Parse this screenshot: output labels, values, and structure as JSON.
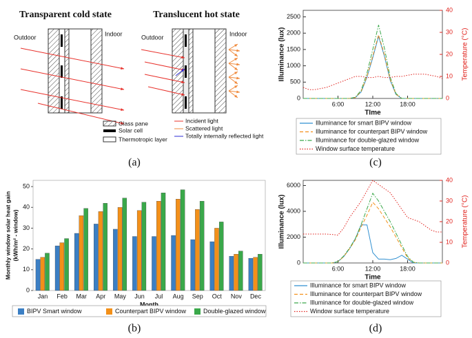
{
  "panels": [
    "(a)",
    "(b)",
    "(c)",
    "(d)"
  ],
  "diagram": {
    "cold_title": "Transparent cold state",
    "hot_title": "Translucent hot state",
    "outdoor": "Outdoor",
    "indoor": "Indoor",
    "legend": [
      "Glass pane",
      "Solar cell",
      "Thermotropic layer"
    ],
    "light_legend": [
      {
        "name": "Incident light",
        "color": "#e8302a"
      },
      {
        "name": "Scattered light",
        "color": "#f08a3c"
      },
      {
        "name": "Totally internally reflected light",
        "color": "#2b2bd6"
      }
    ]
  },
  "chart_data": [
    {
      "type": "bar",
      "x_label": "Month",
      "y_label": [
        "Monthly window solar heat gain",
        "(kWh/m² - window)"
      ],
      "categories": [
        "Jan",
        "Feb",
        "Mar",
        "Apr",
        "May",
        "Jun",
        "Jul",
        "Aug",
        "Sep",
        "Oct",
        "Nov",
        "Dec"
      ],
      "series": [
        {
          "name": "BIPV Smart window",
          "color": "#3b7fc4",
          "values": [
            15,
            21.5,
            27.5,
            32,
            29.5,
            26,
            26,
            26.5,
            24.5,
            23.5,
            16.5,
            15.5
          ]
        },
        {
          "name": "Counterpart BIPV window",
          "color": "#f39019",
          "values": [
            16,
            23,
            36,
            38,
            40,
            38.5,
            43,
            44,
            39,
            30,
            17.5,
            16
          ]
        },
        {
          "name": "Double-glazed window",
          "color": "#3aa84a",
          "values": [
            18,
            25,
            39.5,
            42,
            44.5,
            42.5,
            47,
            48.5,
            43,
            33,
            19,
            17.5
          ]
        }
      ],
      "ylim": [
        0,
        53
      ],
      "yticks": [
        0,
        10,
        20,
        30,
        40,
        50
      ]
    },
    {
      "type": "line",
      "x_label": "TIme",
      "y_label": "Illuminance (lux)",
      "y2_label": "Temperature (°C)",
      "y2_color": "#e0201b",
      "x": [
        0,
        1,
        2,
        3,
        4,
        5,
        6,
        7,
        8,
        9,
        10,
        11,
        12,
        13,
        14,
        15,
        16,
        17,
        18,
        19,
        20,
        21,
        22,
        23,
        24
      ],
      "series": [
        {
          "name": "Illuminance for smart BIPV window",
          "color": "#2f8fd0",
          "style": "solid",
          "values": [
            0,
            0,
            0,
            0,
            0,
            0,
            0,
            0,
            0,
            30,
            200,
            650,
            1250,
            1900,
            1300,
            550,
            120,
            0,
            0,
            0,
            0,
            0,
            0,
            0,
            0
          ]
        },
        {
          "name": "Illuminance for counterpart BIPV window",
          "color": "#f39019",
          "style": "dashed",
          "values": [
            0,
            0,
            0,
            0,
            0,
            0,
            0,
            0,
            0,
            30,
            220,
            680,
            1300,
            1950,
            1350,
            580,
            130,
            0,
            0,
            0,
            0,
            0,
            0,
            0,
            0
          ]
        },
        {
          "name": "Illuminance for double-glazed window",
          "color": "#3aa84a",
          "style": "dashdot",
          "values": [
            0,
            0,
            0,
            0,
            0,
            0,
            0,
            0,
            0,
            40,
            250,
            780,
            1500,
            2250,
            1550,
            650,
            150,
            0,
            0,
            0,
            0,
            0,
            0,
            0,
            0
          ]
        },
        {
          "name": "Window surface temperature",
          "color": "#e0201b",
          "style": "dotted",
          "axis": "y2",
          "values": [
            5,
            4,
            4,
            4.5,
            5,
            6,
            7,
            8,
            9,
            10,
            10,
            9.5,
            9.5,
            10,
            9.5,
            9.5,
            10,
            10,
            10.5,
            11,
            11,
            11,
            10.5,
            10,
            9
          ]
        }
      ],
      "xlim": [
        0,
        24
      ],
      "xticks": [
        {
          "value": 6,
          "label": "6:00"
        },
        {
          "value": 12,
          "label": "12:00"
        },
        {
          "value": 18,
          "label": "18:00"
        }
      ],
      "ylim": [
        0,
        2700
      ],
      "yticks": [
        0,
        500,
        1000,
        1500,
        2000,
        2500
      ],
      "y2lim": [
        0,
        40
      ],
      "y2ticks": [
        0,
        10,
        20,
        30,
        40
      ]
    },
    {
      "type": "line",
      "x_label": "Time",
      "y_label": "Illuminance (lux)",
      "y2_label": "Temperature (°C)",
      "y2_color": "#e0201b",
      "x": [
        0,
        1,
        2,
        3,
        4,
        5,
        6,
        7,
        8,
        9,
        10,
        11,
        12,
        13,
        14,
        15,
        16,
        17,
        18,
        19,
        20,
        21,
        22,
        23,
        24
      ],
      "series": [
        {
          "name": "Illuminance for smart BIPV window",
          "color": "#2f8fd0",
          "style": "solid",
          "values": [
            0,
            0,
            0,
            0,
            0,
            0,
            100,
            500,
            1100,
            1900,
            2950,
            2950,
            800,
            300,
            300,
            250,
            350,
            600,
            300,
            0,
            0,
            0,
            0,
            0,
            0
          ]
        },
        {
          "name": "Illuminance for counterpart BIPV window",
          "color": "#f39019",
          "style": "dashed",
          "values": [
            0,
            0,
            0,
            0,
            0,
            0,
            100,
            500,
            1100,
            1800,
            2800,
            3700,
            4700,
            4200,
            3500,
            2800,
            2000,
            1200,
            400,
            50,
            0,
            0,
            0,
            0,
            0
          ]
        },
        {
          "name": "Illuminance for double-glazed window",
          "color": "#3aa84a",
          "style": "dashdot",
          "values": [
            0,
            0,
            0,
            0,
            0,
            0,
            100,
            550,
            1150,
            1900,
            3000,
            4200,
            5400,
            4800,
            4000,
            3200,
            2300,
            1400,
            500,
            60,
            0,
            0,
            0,
            0,
            0
          ]
        },
        {
          "name": "Window surface temperature",
          "color": "#e0201b",
          "style": "dotted",
          "axis": "y2",
          "values": [
            14,
            14,
            14,
            14,
            14,
            13.8,
            13.5,
            17,
            22,
            26,
            30,
            35,
            40,
            38,
            36,
            34,
            30,
            26,
            22,
            21,
            20,
            18,
            16,
            15,
            15
          ]
        }
      ],
      "xlim": [
        0,
        24
      ],
      "xticks": [
        {
          "value": 6,
          "label": "6:00"
        },
        {
          "value": 12,
          "label": "12:00"
        },
        {
          "value": 18,
          "label": "18:00"
        }
      ],
      "ylim": [
        0,
        6400
      ],
      "yticks": [
        0,
        2000,
        4000,
        6000
      ],
      "y2lim": [
        0,
        40
      ],
      "y2ticks": [
        0,
        10,
        20,
        30,
        40
      ]
    }
  ]
}
